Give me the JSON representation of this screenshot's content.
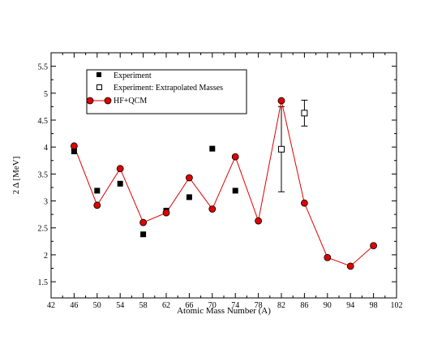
{
  "chart_data": {
    "type": "scatter",
    "title": "",
    "xlabel": "Atomic Mass Number (A)",
    "ylabel": "2 Δ [MeV]",
    "xlim": [
      42,
      102
    ],
    "ylim": [
      1.2,
      5.75
    ],
    "xticks": [
      42,
      46,
      50,
      54,
      58,
      62,
      66,
      70,
      74,
      78,
      82,
      86,
      90,
      94,
      98,
      102
    ],
    "yticks": [
      1.5,
      2,
      2.5,
      3,
      3.5,
      4,
      4.5,
      5,
      5.5
    ],
    "grid": false,
    "legend_position": "top-left",
    "series": [
      {
        "name": "Experiment",
        "marker": "filled-square",
        "color": "#000000",
        "points": [
          {
            "x": 46,
            "y": 3.92
          },
          {
            "x": 50,
            "y": 3.19
          },
          {
            "x": 54,
            "y": 3.32
          },
          {
            "x": 58,
            "y": 2.38
          },
          {
            "x": 62,
            "y": 2.82
          },
          {
            "x": 66,
            "y": 3.07
          },
          {
            "x": 70,
            "y": 3.97
          },
          {
            "x": 74,
            "y": 3.19
          }
        ]
      },
      {
        "name": "Experiment: Extrapolated Masses",
        "marker": "open-square",
        "color": "#000000",
        "points": [
          {
            "x": 82,
            "y": 3.96,
            "err_low": 3.17,
            "err_high": 4.75
          },
          {
            "x": 86,
            "y": 4.63,
            "err_low": 4.39,
            "err_high": 4.87
          }
        ]
      },
      {
        "name": "HF+QCM",
        "marker": "circle-line",
        "color": "#e00000",
        "points": [
          {
            "x": 46,
            "y": 4.02
          },
          {
            "x": 50,
            "y": 2.92
          },
          {
            "x": 54,
            "y": 3.6
          },
          {
            "x": 58,
            "y": 2.6
          },
          {
            "x": 62,
            "y": 2.78
          },
          {
            "x": 66,
            "y": 3.43
          },
          {
            "x": 70,
            "y": 2.85
          },
          {
            "x": 74,
            "y": 3.82
          },
          {
            "x": 78,
            "y": 2.63
          },
          {
            "x": 82,
            "y": 4.86
          },
          {
            "x": 86,
            "y": 2.96
          },
          {
            "x": 90,
            "y": 1.95
          },
          {
            "x": 94,
            "y": 1.79
          },
          {
            "x": 98,
            "y": 2.17
          }
        ]
      }
    ]
  }
}
